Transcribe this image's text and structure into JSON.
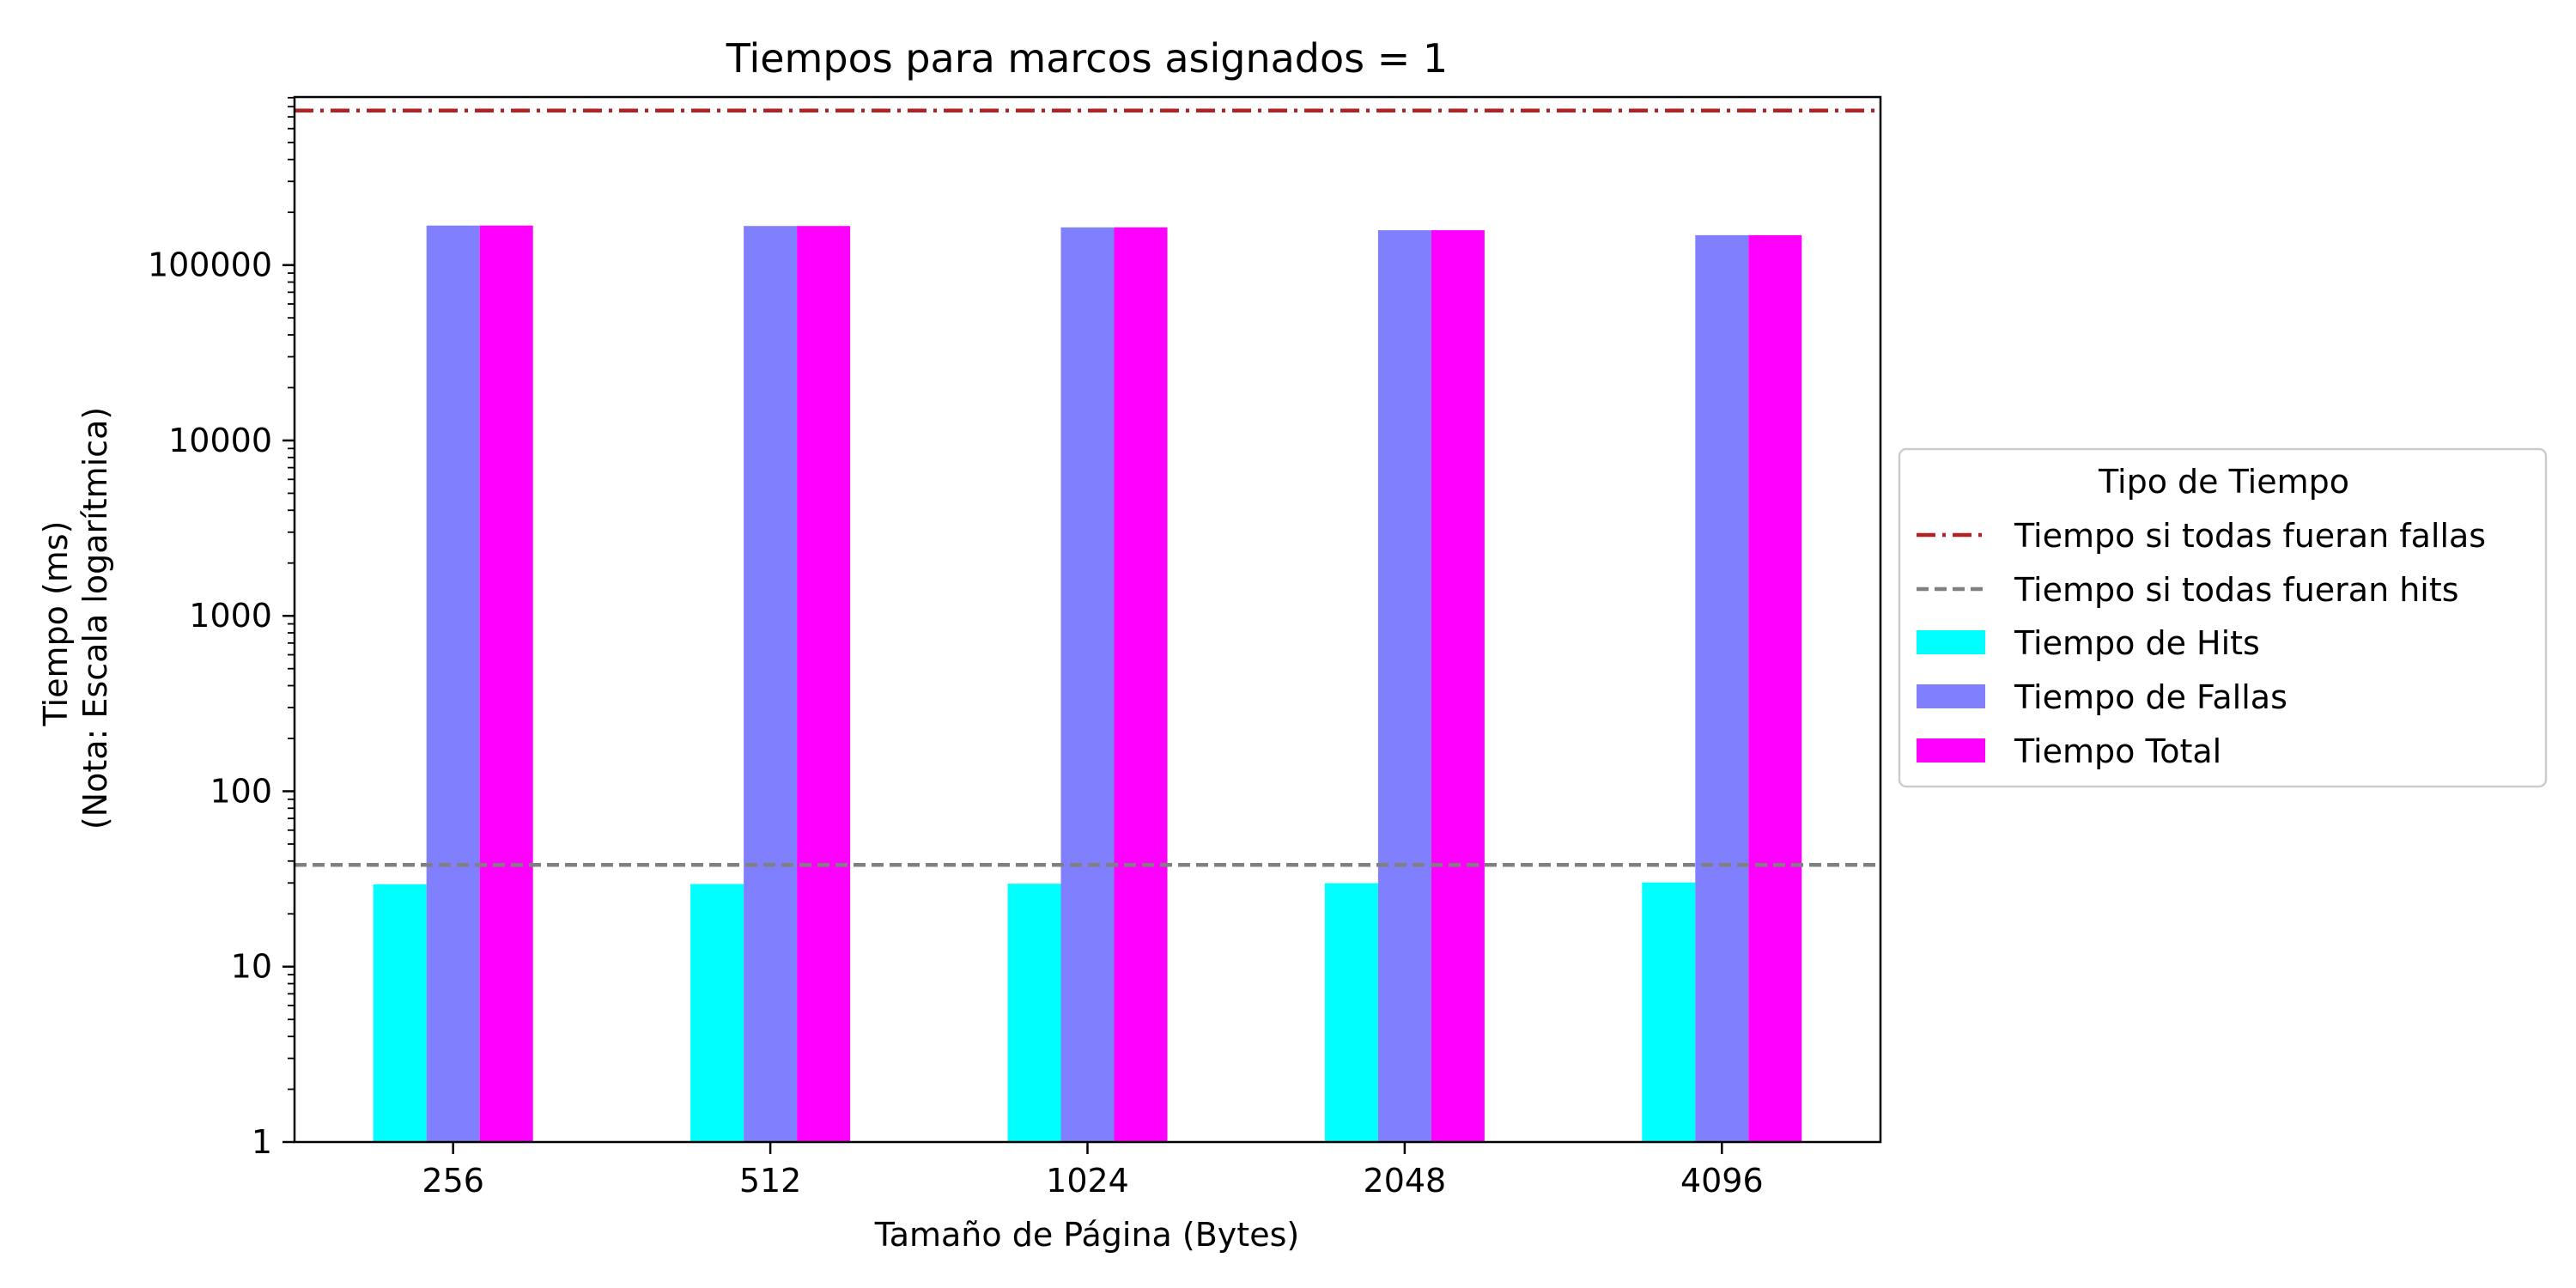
{
  "chart_data": {
    "type": "bar",
    "title": "Tiempos para marcos asignados = 1",
    "xlabel": "Tamaño de Página (Bytes)",
    "ylabel_lines": [
      "Tiempo (ms)",
      "(Nota: Escala logarítmica)"
    ],
    "yscale": "log",
    "ylim": [
      1,
      1000000
    ],
    "yticks": [
      1,
      10,
      100,
      1000,
      10000,
      100000
    ],
    "ytick_labels": [
      "1",
      "10",
      "100",
      "1000",
      "10000",
      "100000"
    ],
    "grid": false,
    "categories": [
      "256",
      "512",
      "1024",
      "2048",
      "4096"
    ],
    "series": [
      {
        "name": "Tiempo de Hits",
        "color": "#00ffff",
        "values": [
          29.5,
          29.6,
          29.7,
          29.9,
          30.2
        ]
      },
      {
        "name": "Tiempo de Fallas",
        "color": "#8080ff",
        "values": [
          168000,
          167000,
          164000,
          158000,
          148000
        ]
      },
      {
        "name": "Tiempo Total",
        "color": "#ff00ff",
        "values": [
          168030,
          167030,
          164030,
          158030,
          148030
        ]
      }
    ],
    "reference_lines": [
      {
        "name": "Tiempo si todas fueran fallas",
        "value": 760000,
        "color": "#b22222",
        "style": "dashdot"
      },
      {
        "name": "Tiempo si todas fueran hits",
        "value": 38,
        "color": "#808080",
        "style": "dashed"
      }
    ],
    "legend": {
      "title": "Tipo de Tiempo",
      "placement": "center-right-outside"
    }
  }
}
